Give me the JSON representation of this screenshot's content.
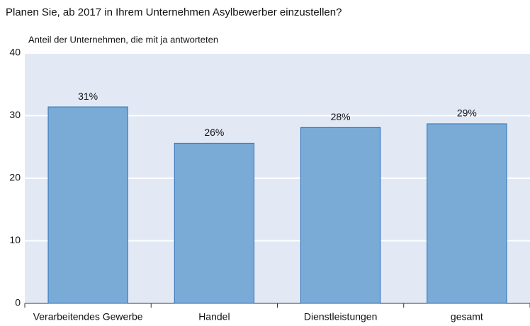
{
  "chart_data": {
    "type": "bar",
    "title": "Planen Sie, ab 2017 in Ihrem Unternehmen Asylbewerber einzustellen?",
    "subtitle": "Anteil der Unternehmen, die mit ja antworteten",
    "categories": [
      "Verarbeitendes Gewerbe",
      "Handel",
      "Dienstleistungen",
      "gesamt"
    ],
    "values": [
      31.4,
      25.6,
      28.1,
      28.7
    ],
    "value_labels": [
      "31%",
      "26%",
      "28%",
      "29%"
    ],
    "color": "#7aaad6",
    "ylim": [
      0,
      40
    ],
    "yticks": [
      0,
      10,
      20,
      30,
      40
    ],
    "grid": true
  }
}
